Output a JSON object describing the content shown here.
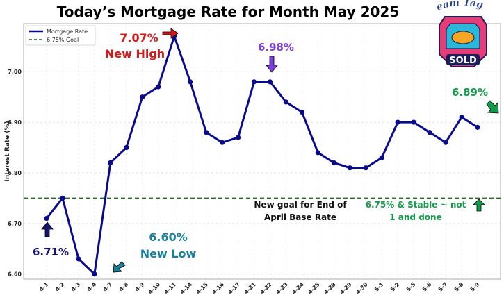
{
  "chart_data": {
    "type": "line",
    "title": "Today’s Mortgage Rate for Month May 2025",
    "ylabel": "Interest Rate (%)",
    "xlabel": "",
    "ylim": [
      6.59,
      7.095
    ],
    "yticks": [
      "6.60",
      "6.70",
      "6.80",
      "6.90",
      "7.00"
    ],
    "grid": true,
    "legend_position": "top-left",
    "categories": [
      "4-1",
      "4-2",
      "4-3",
      "4-4",
      "4-7",
      "4-8",
      "4-9",
      "4-10",
      "4-11",
      "4-14",
      "4-15",
      "4-16",
      "4-17",
      "4-21",
      "4-22",
      "4-23",
      "4-24",
      "4-25",
      "4-28",
      "4-29",
      "4-30",
      "5-1",
      "5-2",
      "5-5",
      "5-6",
      "5-7",
      "5-8",
      "5-9"
    ],
    "series": [
      {
        "name": "Mortgage Rate",
        "color": "#0a0a8c",
        "values": [
          6.71,
          6.75,
          6.63,
          6.6,
          6.82,
          6.85,
          6.95,
          6.97,
          7.07,
          6.98,
          6.88,
          6.86,
          6.87,
          6.98,
          6.98,
          6.94,
          6.92,
          6.84,
          6.82,
          6.81,
          6.81,
          6.83,
          6.9,
          6.9,
          6.88,
          6.86,
          6.91,
          6.89
        ]
      }
    ],
    "reference_line": {
      "name": "6.75% Goal",
      "value": 6.75,
      "color": "#1e6b1e",
      "style": "dashed"
    },
    "annotations": {
      "high_value": "7.07%",
      "high_label": "New High",
      "peak2_value": "6.98%",
      "last_value": "6.89%",
      "low_value": "6.60%",
      "low_label": "New Low",
      "start_value": "6.71%",
      "goal_line1": "New goal for End of",
      "goal_line2": "April Base Rate",
      "stable_line1": "6.75% & Stable ~ not",
      "stable_line2": "1 and done"
    },
    "colors": {
      "high": "#d11a1a",
      "peak2": "#7b3fe0",
      "last": "#139a4a",
      "low": "#1a7f9a",
      "start": "#14146e",
      "stable": "#139a4a"
    }
  },
  "logo": {
    "top_text": "Team Tag It",
    "bottom_text": "SOLD"
  }
}
